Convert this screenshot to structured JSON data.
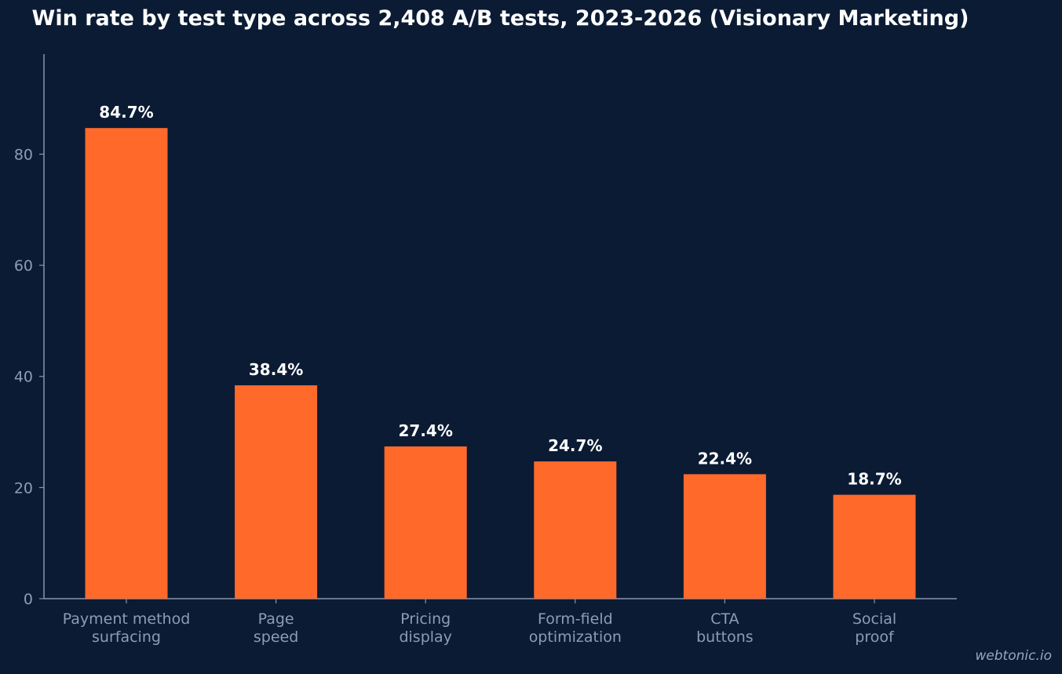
{
  "chart_data": {
    "type": "bar",
    "title": "Win rate by test type across 2,408 A/B tests, 2023-2026 (Visionary Marketing)",
    "xlabel": "",
    "ylabel": "",
    "categories": [
      [
        "Payment method",
        "surfacing"
      ],
      [
        "Page",
        "speed"
      ],
      [
        "Pricing",
        "display"
      ],
      [
        "Form-field",
        "optimization"
      ],
      [
        "CTA",
        "buttons"
      ],
      [
        "Social",
        "proof"
      ]
    ],
    "values": [
      84.7,
      38.4,
      27.4,
      24.7,
      22.4,
      18.7
    ],
    "data_labels": [
      "84.7%",
      "38.4%",
      "27.4%",
      "24.7%",
      "22.4%",
      "18.7%"
    ],
    "ylim": [
      0,
      98
    ],
    "yticks": [
      0,
      20,
      40,
      60,
      80
    ],
    "grid": false,
    "legend": "none",
    "colors": {
      "bar": "#ff6a2b",
      "background": "#0b1b34",
      "axis": "#8796ad",
      "tick_label": "#8f9cb2",
      "data_label": "#ffffff",
      "title": "#ffffff"
    }
  },
  "watermark": "webtonic.io"
}
